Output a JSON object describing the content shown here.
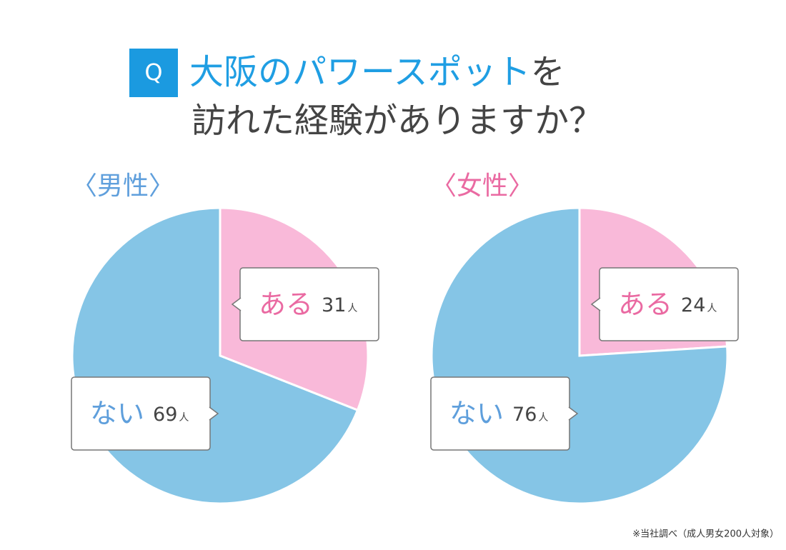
{
  "question": {
    "badge": "Q",
    "highlight": "大阪のパワースポット",
    "rest": "を",
    "line2": "訪れた経験がありますか？"
  },
  "chart_data": [
    {
      "type": "pie",
      "title": "〈男性〉",
      "categories": [
        "ある",
        "ない"
      ],
      "values": [
        31,
        69
      ],
      "unit": "人",
      "colors": [
        "#f9b9d9",
        "#85c5e6"
      ]
    },
    {
      "type": "pie",
      "title": "〈女性〉",
      "categories": [
        "ある",
        "ない"
      ],
      "values": [
        24,
        76
      ],
      "unit": "人",
      "colors": [
        "#f9b9d9",
        "#85c5e6"
      ]
    }
  ],
  "note": "※当社調べ（成人男女200人対象）"
}
